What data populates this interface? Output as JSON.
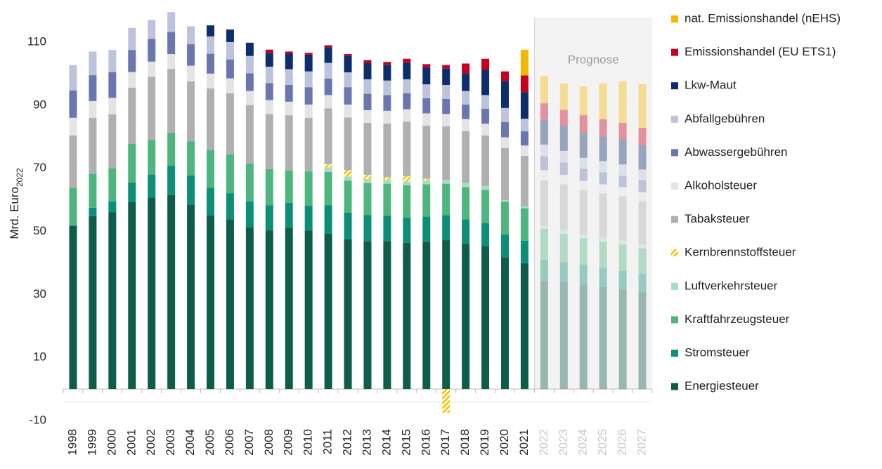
{
  "chart_data": {
    "type": "stacked_bar",
    "ylabel": "Mrd. Euro",
    "ylabel_sub": "2022",
    "annotation": "Prognose",
    "forecast_start": "2022",
    "ylim": [
      -10,
      120
    ],
    "yticks": [
      -10,
      10,
      30,
      50,
      70,
      90,
      110
    ],
    "categories": [
      "1998",
      "1999",
      "2000",
      "2001",
      "2002",
      "2003",
      "2004",
      "2005",
      "2006",
      "2007",
      "2008",
      "2009",
      "2010",
      "2011",
      "2012",
      "2013",
      "2014",
      "2015",
      "2016",
      "2017",
      "2018",
      "2019",
      "2020",
      "2021",
      "2022",
      "2023",
      "2024",
      "2025",
      "2026",
      "2027"
    ],
    "series": [
      {
        "name": "Energiesteuer",
        "color": "#0e5c4a",
        "values": [
          51.8,
          54.8,
          56,
          59.3,
          60.7,
          61.5,
          58.5,
          55,
          53.8,
          51.3,
          50.3,
          51,
          50.3,
          49.3,
          47.5,
          46.8,
          46.9,
          46.4,
          46.7,
          47.2,
          46,
          45.3,
          41.8,
          39.9,
          34.2,
          34,
          33.1,
          32.3,
          31.5,
          30.6
        ]
      },
      {
        "name": "Stromsteuer",
        "color": "#0d8f77",
        "values": [
          0,
          2.7,
          3.5,
          6.2,
          7.3,
          9.3,
          9.2,
          8.8,
          8.3,
          8.2,
          8,
          8,
          7.8,
          9,
          8.4,
          8.4,
          8,
          8,
          8,
          7.9,
          7.8,
          7.3,
          7.2,
          7.1,
          6.8,
          6.2,
          6.3,
          6.1,
          6,
          6
        ]
      },
      {
        "name": "Kraftfahrzeugsteuer",
        "color": "#4fb57f",
        "values": [
          12,
          10.8,
          10.5,
          12.2,
          11,
          10.5,
          10.8,
          12,
          12.3,
          12,
          11.4,
          10.3,
          10.9,
          10.5,
          10.2,
          10.1,
          10.2,
          10.2,
          10.2,
          10,
          10.2,
          10.5,
          10.4,
          10.3,
          9.8,
          9,
          8.4,
          8.3,
          8.3,
          8
        ]
      },
      {
        "name": "Luftverkehrsteuer",
        "color": "#a8dcc3",
        "values": [
          0,
          0,
          0,
          0,
          0,
          0,
          0,
          0,
          0,
          0,
          0,
          0,
          0,
          1.5,
          1.3,
          1.3,
          1.3,
          1.2,
          1.2,
          1.2,
          1.3,
          1.3,
          0.5,
          0.6,
          1,
          1.3,
          1.3,
          1.3,
          1.3,
          1.2
        ]
      },
      {
        "name": "Kernbrennstoffsteuer",
        "color": "#f5c400",
        "hatch": true,
        "values": [
          0,
          0,
          0,
          0,
          0,
          0,
          0,
          0,
          0,
          0,
          0,
          0,
          0,
          1,
          2,
          1.3,
          0.8,
          1.7,
          0.6,
          -7.5,
          0,
          0,
          0,
          0,
          0,
          0,
          0,
          0,
          0,
          0
        ]
      },
      {
        "name": "Tabaksteuer",
        "color": "#b0b0b0",
        "values": [
          16.6,
          17.7,
          17.1,
          17.8,
          20,
          20.2,
          19,
          19.5,
          19.4,
          18.5,
          17.5,
          17.5,
          17,
          17.7,
          16.7,
          16.5,
          17,
          17.3,
          16.8,
          17,
          16.5,
          16,
          16.5,
          16,
          14.3,
          14.4,
          14,
          14,
          14,
          13.8
        ]
      },
      {
        "name": "Alkoholsteuer",
        "color": "#e4e4e4",
        "values": [
          5.6,
          5.3,
          5.2,
          5,
          4.8,
          4.7,
          5,
          4.7,
          4.7,
          4.5,
          4.4,
          4.3,
          4.2,
          4.2,
          4.1,
          4,
          4,
          3.9,
          3.9,
          3.9,
          3.8,
          3.7,
          3.4,
          3.3,
          3.3,
          3,
          2.9,
          2.9,
          2.9,
          2.8
        ]
      },
      {
        "name": "Abwassergebühren",
        "color": "#6a77ae",
        "values": [
          8.7,
          8.2,
          8.2,
          7,
          7.2,
          7,
          6.8,
          6.3,
          6,
          5.6,
          5.4,
          5.3,
          5.5,
          5.2,
          5.5,
          5.2,
          5,
          5.1,
          4.8,
          4.8,
          4.6,
          4.8,
          4.8,
          4.5,
          4.4,
          3.9,
          3.8,
          3.8,
          3.6,
          3.8
        ]
      },
      {
        "name": "Abfallgebühren",
        "color": "#bcc3da",
        "values": [
          8,
          7.5,
          7,
          7,
          6,
          6.3,
          5.7,
          5.5,
          5.5,
          5.5,
          5.2,
          5,
          5,
          5,
          4.7,
          4.6,
          4.6,
          4.4,
          4.4,
          4.4,
          4.3,
          4.3,
          4.5,
          4,
          3.7,
          3.7,
          3.5,
          3.6,
          3.6,
          3.4
        ]
      },
      {
        "name": "Lkw-Maut",
        "color": "#0d2e6b",
        "values": [
          0,
          0,
          0,
          0,
          0,
          0,
          0,
          3.5,
          4,
          4.2,
          4.4,
          5,
          5.3,
          5,
          5.3,
          5.2,
          5,
          5.3,
          5.4,
          5.3,
          5.6,
          8,
          8.6,
          8.4,
          7.7,
          8,
          8,
          7.8,
          7.8,
          7.6
        ]
      },
      {
        "name": "Emissionshandel (EU ETS1)",
        "color": "#c8001e",
        "values": [
          0,
          0,
          0,
          0,
          0,
          0,
          0,
          0,
          0,
          0,
          1,
          0.6,
          0.6,
          0.6,
          0.5,
          0.9,
          0.9,
          1.2,
          1,
          1,
          3.1,
          3.5,
          3,
          5.3,
          5.4,
          5,
          5.5,
          5.4,
          5.4,
          5.6
        ]
      },
      {
        "name": "nat. Emissionshandel (nEHS)",
        "color": "#f5b800",
        "values": [
          0,
          0,
          0,
          0,
          0,
          0,
          0,
          0,
          0,
          0,
          0,
          0,
          0,
          0,
          0,
          0,
          0,
          0,
          0,
          0,
          0,
          0,
          0,
          8.2,
          8.6,
          8.4,
          9.2,
          11.4,
          13.2,
          13.8
        ]
      }
    ]
  }
}
